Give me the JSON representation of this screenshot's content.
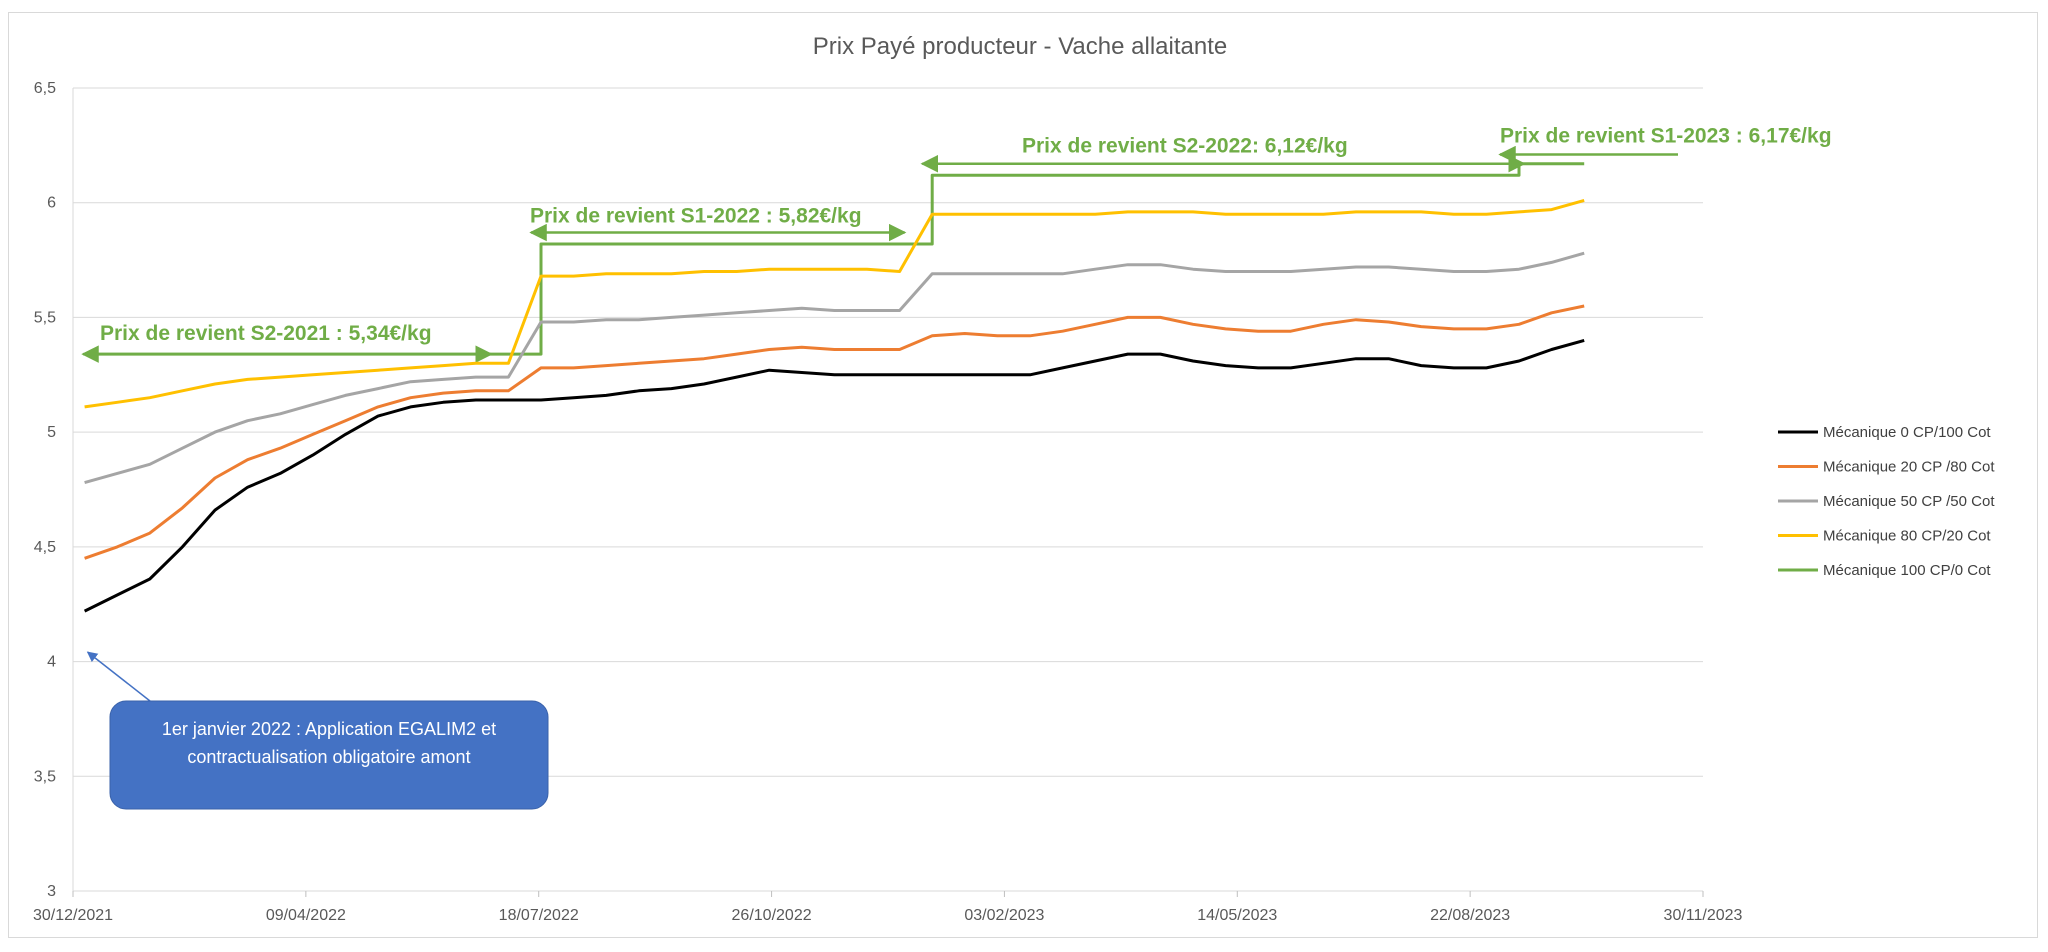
{
  "chart_data": {
    "type": "line",
    "title": "Prix Payé producteur - Vache allaitante",
    "xlabel": "",
    "ylabel": "",
    "ylim": [
      3,
      6.5
    ],
    "yticks": [
      "3",
      "3,5",
      "4",
      "4,5",
      "5",
      "5,5",
      "6",
      "6,5"
    ],
    "xlim": [
      "2021-12-30",
      "2023-11-30"
    ],
    "xticks": [
      "30/12/2021",
      "09/04/2022",
      "18/07/2022",
      "26/10/2022",
      "03/02/2023",
      "14/05/2023",
      "22/08/2023",
      "30/11/2023"
    ],
    "grid": "horizontal",
    "legend_position": "right",
    "x": [
      "2022-01-04",
      "2022-01-18",
      "2022-02-01",
      "2022-02-15",
      "2022-03-01",
      "2022-03-15",
      "2022-03-29",
      "2022-04-12",
      "2022-04-26",
      "2022-05-10",
      "2022-05-24",
      "2022-06-07",
      "2022-06-21",
      "2022-07-05",
      "2022-07-19",
      "2022-08-02",
      "2022-08-16",
      "2022-08-30",
      "2022-09-13",
      "2022-09-27",
      "2022-10-11",
      "2022-10-25",
      "2022-11-08",
      "2022-11-22",
      "2022-12-06",
      "2022-12-20",
      "2023-01-03",
      "2023-01-17",
      "2023-01-31",
      "2023-02-14",
      "2023-02-28",
      "2023-03-14",
      "2023-03-28",
      "2023-04-11",
      "2023-04-25",
      "2023-05-09",
      "2023-05-23",
      "2023-06-06",
      "2023-06-20",
      "2023-07-04",
      "2023-07-18",
      "2023-08-01",
      "2023-08-15",
      "2023-08-29",
      "2023-09-12",
      "2023-09-26"
    ],
    "series": [
      {
        "name": "Mécanique 0 CP/100 Cot",
        "color": "#000000",
        "values": [
          4.22,
          4.29,
          4.36,
          4.5,
          4.66,
          4.76,
          4.82,
          4.9,
          4.99,
          5.07,
          5.11,
          5.13,
          5.14,
          5.14,
          5.14,
          5.15,
          5.16,
          5.18,
          5.19,
          5.21,
          5.24,
          5.27,
          5.26,
          5.25,
          5.25,
          5.25,
          5.25,
          5.25,
          5.25,
          5.25,
          5.28,
          5.31,
          5.34,
          5.34,
          5.31,
          5.29,
          5.28,
          5.28,
          5.3,
          5.32,
          5.32,
          5.29,
          5.28,
          5.28,
          5.31,
          5.36
        ]
      },
      {
        "name": "Mécanique 20 CP /80 Cot",
        "color": "#ED7D31",
        "values": [
          4.45,
          4.5,
          4.56,
          4.67,
          4.8,
          4.88,
          4.93,
          4.99,
          5.05,
          5.11,
          5.15,
          5.17,
          5.18,
          5.18,
          5.28,
          5.28,
          5.29,
          5.3,
          5.31,
          5.32,
          5.34,
          5.36,
          5.37,
          5.36,
          5.36,
          5.36,
          5.42,
          5.43,
          5.42,
          5.42,
          5.44,
          5.47,
          5.5,
          5.5,
          5.47,
          5.45,
          5.44,
          5.44,
          5.47,
          5.49,
          5.48,
          5.46,
          5.45,
          5.45,
          5.47,
          5.52
        ]
      },
      {
        "name": "Mécanique 50 CP /50 Cot",
        "color": "#A5A5A5",
        "values": [
          4.78,
          4.82,
          4.86,
          4.93,
          5.0,
          5.05,
          5.08,
          5.12,
          5.16,
          5.19,
          5.22,
          5.23,
          5.24,
          5.24,
          5.48,
          5.48,
          5.49,
          5.49,
          5.5,
          5.51,
          5.52,
          5.53,
          5.54,
          5.53,
          5.53,
          5.53,
          5.69,
          5.69,
          5.69,
          5.69,
          5.69,
          5.71,
          5.73,
          5.73,
          5.71,
          5.7,
          5.7,
          5.7,
          5.71,
          5.72,
          5.72,
          5.71,
          5.7,
          5.7,
          5.71,
          5.74
        ]
      },
      {
        "name": "Mécanique 80 CP/20 Cot",
        "color": "#FFC000",
        "values": [
          5.11,
          5.13,
          5.15,
          5.18,
          5.21,
          5.23,
          5.24,
          5.25,
          5.26,
          5.27,
          5.28,
          5.29,
          5.3,
          5.3,
          5.68,
          5.68,
          5.69,
          5.69,
          5.69,
          5.7,
          5.7,
          5.71,
          5.71,
          5.71,
          5.71,
          5.7,
          5.95,
          5.95,
          5.95,
          5.95,
          5.95,
          5.95,
          5.96,
          5.96,
          5.96,
          5.95,
          5.95,
          5.95,
          5.95,
          5.96,
          5.96,
          5.96,
          5.95,
          5.95,
          5.96,
          5.97
        ]
      },
      {
        "name": "Mécanique 100 CP/0 Cot",
        "color": "#70AD47",
        "values": [
          5.34,
          5.34,
          5.34,
          5.34,
          5.34,
          5.34,
          5.34,
          5.34,
          5.34,
          5.34,
          5.34,
          5.34,
          5.34,
          5.34,
          5.82,
          5.82,
          5.82,
          5.82,
          5.82,
          5.82,
          5.82,
          5.82,
          5.82,
          5.82,
          5.82,
          5.82,
          6.12,
          6.12,
          6.12,
          6.12,
          6.12,
          6.12,
          6.12,
          6.12,
          6.12,
          6.12,
          6.12,
          6.12,
          6.12,
          6.12,
          6.12,
          6.12,
          6.12,
          6.12,
          6.17,
          6.17
        ]
      }
    ],
    "extensions": {
      "start": "2023-09-26",
      "end": "2023-10-10",
      "values": [
        5.4,
        5.55,
        5.78,
        6.01,
        6.17
      ]
    },
    "annotations": [
      {
        "id": "s2-2021",
        "text": "Prix de revient S2-2021 :  5,34€/kg",
        "color": "#70AD47",
        "x_start": "2021-12-30",
        "x_end": "2022-07-04",
        "y": 5.34
      },
      {
        "id": "s1-2022",
        "text": "Prix de revient S1-2022 : 5,82€/kg",
        "color": "#70AD47",
        "x_start": "2022-07-19",
        "x_end": "2022-12-20",
        "y": 5.87
      },
      {
        "id": "s2-2022",
        "text": "Prix de revient S2-2022:  6,12€/kg",
        "color": "#70AD47",
        "x_start": "2023-01-03",
        "x_end": "2023-09-12",
        "y": 6.17
      },
      {
        "id": "s1-2023",
        "text": "Prix de revient S1-2023 :  6,17€/kg",
        "color": "#70AD47",
        "x_start": "2023-10-10",
        "x_end": "2023-11-30",
        "y": 6.21
      }
    ],
    "callout": {
      "text_line1": "1er janvier 2022 : Application EGALIM2 et",
      "text_line2": "contractualisation obligatoire amont",
      "fill": "#4472C4",
      "target_date": "2022-01-04",
      "target_y": 4.05
    }
  }
}
